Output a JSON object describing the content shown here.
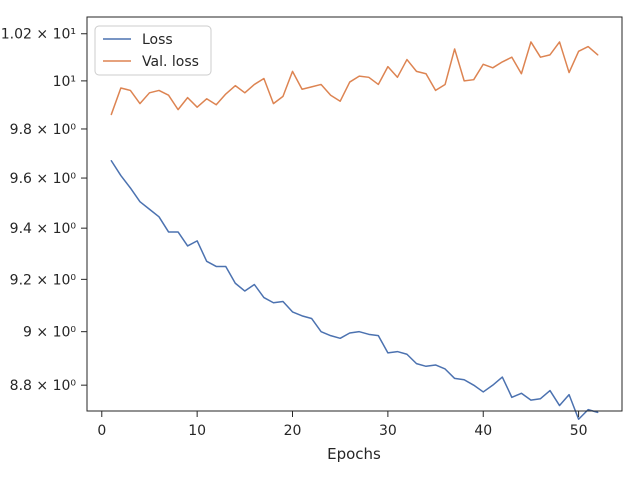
{
  "chart_data": {
    "type": "line",
    "title": "",
    "xlabel": "Epochs",
    "ylabel": "",
    "yscale": "log",
    "xlim": [
      -1.55,
      54.55
    ],
    "ylim": [
      8.705,
      10.272
    ],
    "grid": false,
    "legend_position": "top-left",
    "x_ticks": [
      {
        "value": 0,
        "label": "0"
      },
      {
        "value": 10,
        "label": "10"
      },
      {
        "value": 20,
        "label": "20"
      },
      {
        "value": 30,
        "label": "30"
      },
      {
        "value": 40,
        "label": "40"
      },
      {
        "value": 50,
        "label": "50"
      }
    ],
    "y_ticks": [
      {
        "value": 8.8,
        "label": "8.8 × 10⁰"
      },
      {
        "value": 9.0,
        "label": "9 × 10⁰"
      },
      {
        "value": 9.2,
        "label": "9.2 × 10⁰"
      },
      {
        "value": 9.4,
        "label": "9.4 × 10⁰"
      },
      {
        "value": 9.6,
        "label": "9.6 × 10⁰"
      },
      {
        "value": 9.8,
        "label": "9.8 × 10⁰"
      },
      {
        "value": 10.0,
        "label": "10¹"
      },
      {
        "value": 10.2,
        "label": "1.02 × 10¹"
      }
    ],
    "x": [
      1,
      2,
      3,
      4,
      5,
      6,
      7,
      8,
      9,
      10,
      11,
      12,
      13,
      14,
      15,
      16,
      17,
      18,
      19,
      20,
      21,
      22,
      23,
      24,
      25,
      26,
      27,
      28,
      29,
      30,
      31,
      32,
      33,
      34,
      35,
      36,
      37,
      38,
      39,
      40,
      41,
      42,
      43,
      44,
      45,
      46,
      47,
      48,
      49,
      50,
      51,
      52
    ],
    "series": [
      {
        "name": "Loss",
        "color": "#4c72b0",
        "values": [
          9.67,
          9.61,
          9.56,
          9.505,
          9.475,
          9.445,
          9.385,
          9.385,
          9.33,
          9.35,
          9.27,
          9.25,
          9.25,
          9.185,
          9.155,
          9.18,
          9.13,
          9.11,
          9.115,
          9.075,
          9.06,
          9.05,
          9.0,
          8.985,
          8.975,
          8.995,
          9.0,
          8.99,
          8.985,
          8.92,
          8.925,
          8.915,
          8.88,
          8.87,
          8.875,
          8.86,
          8.825,
          8.82,
          8.8,
          8.775,
          8.8,
          8.83,
          8.755,
          8.77,
          8.745,
          8.75,
          8.78,
          8.725,
          8.765,
          8.675,
          8.71,
          8.7
        ]
      },
      {
        "name": "Val. loss",
        "color": "#dd8452",
        "values": [
          9.86,
          9.97,
          9.96,
          9.905,
          9.95,
          9.96,
          9.94,
          9.88,
          9.93,
          9.89,
          9.925,
          9.9,
          9.945,
          9.98,
          9.95,
          9.985,
          10.01,
          9.905,
          9.935,
          10.04,
          9.965,
          9.975,
          9.985,
          9.94,
          9.915,
          9.995,
          10.02,
          10.015,
          9.985,
          10.06,
          10.015,
          10.09,
          10.04,
          10.03,
          9.96,
          9.985,
          10.135,
          10.0,
          10.005,
          10.07,
          10.055,
          10.08,
          10.1,
          10.03,
          10.165,
          10.1,
          10.11,
          10.165,
          10.035,
          10.125,
          10.145,
          10.11
        ]
      }
    ]
  }
}
